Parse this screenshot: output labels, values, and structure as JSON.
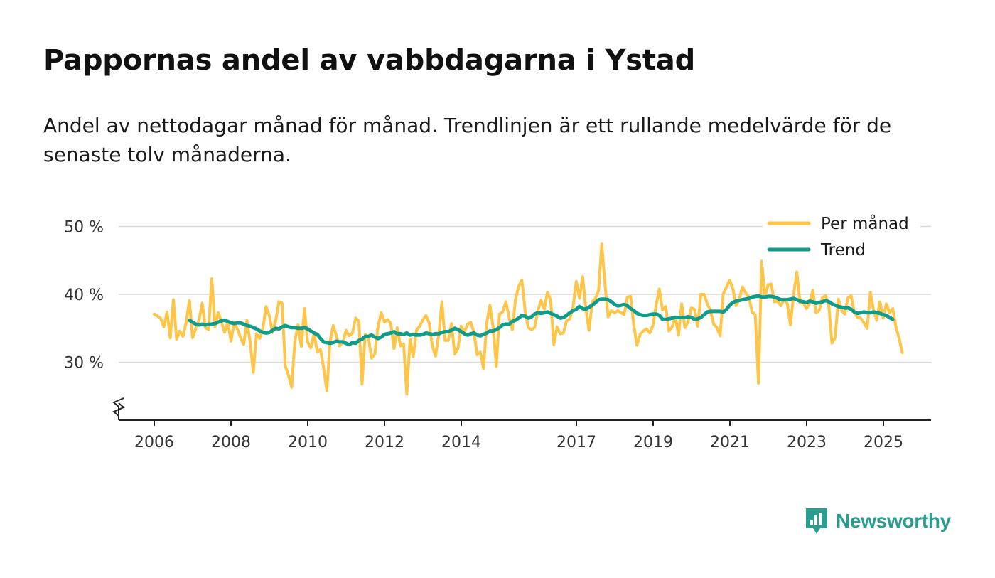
{
  "title": "Pappornas andel av vabbdagarna i Ystad",
  "subtitle": "Andel av nettodagar månad för månad. Trendlinjen är ett rullande medelvärde för de senaste tolv månaderna.",
  "brand": {
    "name": "Newsworthy",
    "color": "#2a9d8f",
    "icon": "newsworthy-logo-icon"
  },
  "chart_data": {
    "type": "line",
    "title": "Pappornas andel av vabbdagarna i Ystad",
    "xlabel": "",
    "ylabel": "",
    "ylim": [
      22,
      50
    ],
    "y_ticks": [
      30,
      40,
      50
    ],
    "y_tick_labels": [
      "30 %",
      "40 %",
      "50 %"
    ],
    "x_range": [
      2005.7,
      2025.9
    ],
    "x_ticks": [
      2006,
      2008,
      2010,
      2012,
      2014,
      2017,
      2019,
      2021,
      2023,
      2025
    ],
    "x_tick_labels": [
      "2006",
      "2008",
      "2010",
      "2012",
      "2014",
      "2017",
      "2019",
      "2021",
      "2023",
      "2025"
    ],
    "axis_break": true,
    "grid": true,
    "legend_position": "top-right",
    "series": [
      {
        "name": "Per månad",
        "color": "#ffc549",
        "x_start": 2006.0,
        "step": 0.0833,
        "values": [
          37.1,
          36.8,
          36.5,
          35.2,
          37.4,
          33.6,
          39.2,
          33.4,
          34.6,
          33.8,
          35.9,
          39.1,
          33.6,
          35.0,
          36.2,
          38.7,
          35.1,
          34.8,
          42.3,
          35.2,
          37.3,
          36.0,
          34.4,
          35.9,
          33.1,
          35.8,
          34.9,
          33.6,
          32.6,
          36.2,
          33.0,
          28.5,
          34.2,
          33.5,
          35.0,
          38.2,
          36.9,
          34.4,
          36.1,
          38.9,
          38.7,
          29.4,
          28.1,
          26.3,
          33.1,
          35.5,
          32.3,
          37.9,
          33.0,
          32.1,
          34.2,
          31.5,
          31.9,
          29.1,
          25.8,
          33.1,
          35.4,
          33.8,
          32.4,
          32.9,
          34.7,
          33.9,
          34.3,
          36.5,
          36.1,
          26.8,
          34.1,
          33.6,
          30.6,
          31.2,
          35.3,
          37.3,
          35.9,
          36.3,
          35.7,
          32.0,
          35.1,
          32.4,
          32.7,
          25.3,
          33.4,
          30.8,
          34.7,
          35.3,
          36.2,
          36.9,
          35.8,
          32.4,
          30.9,
          34.0,
          38.9,
          33.2,
          33.2,
          35.7,
          31.2,
          32.0,
          35.3,
          34.4,
          35.6,
          35.9,
          34.4,
          31.1,
          31.5,
          29.1,
          35.7,
          38.4,
          35.1,
          29.4,
          37.1,
          37.4,
          38.9,
          36.6,
          34.8,
          39.2,
          41.2,
          42.1,
          37.6,
          35.1,
          34.8,
          35.1,
          37.6,
          39.1,
          37.8,
          40.3,
          39.1,
          32.6,
          35.2,
          34.2,
          34.3,
          36.1,
          36.4,
          38.1,
          41.9,
          39.4,
          42.6,
          37.9,
          34.7,
          38.9,
          39.4,
          40.5,
          47.4,
          41.5,
          36.7,
          37.6,
          37.3,
          37.6,
          37.3,
          37.0,
          39.6,
          39.7,
          35.5,
          32.5,
          34.1,
          34.6,
          34.9,
          34.3,
          35.4,
          38.4,
          40.8,
          37.7,
          38.2,
          34.6,
          35.2,
          36.7,
          34.0,
          38.6,
          35.1,
          35.9,
          38.0,
          37.8,
          35.3,
          40.0,
          40.0,
          38.6,
          37.6,
          35.6,
          35.1,
          33.9,
          40.1,
          41.1,
          42.1,
          40.8,
          38.3,
          39.3,
          41.1,
          40.2,
          39.6,
          37.4,
          37.0,
          26.9,
          44.9,
          39.6,
          41.4,
          41.5,
          38.9,
          39.0,
          38.3,
          39.2,
          38.7,
          35.5,
          39.9,
          43.3,
          38.7,
          38.8,
          37.9,
          38.6,
          40.6,
          37.3,
          37.6,
          39.5,
          39.8,
          38.4,
          32.8,
          33.6,
          39.3,
          37.7,
          37.1,
          39.5,
          39.8,
          37.3,
          36.6,
          36.5,
          35.8,
          35.0,
          40.3,
          37.7,
          36.2,
          38.9,
          36.5,
          38.6,
          37.3,
          37.9,
          35.2,
          33.5,
          31.4
        ]
      },
      {
        "name": "Trend",
        "color": "#109b8a",
        "x_start": 2006.917,
        "step": 0.0833,
        "values": [
          36.2,
          35.9,
          35.6,
          35.5,
          35.6,
          35.5,
          35.6,
          35.6,
          35.7,
          35.9,
          36.1,
          36.2,
          36.0,
          35.8,
          35.7,
          35.8,
          35.8,
          35.6,
          35.4,
          35.3,
          35.1,
          34.9,
          34.6,
          34.4,
          34.3,
          34.4,
          34.7,
          35.0,
          34.9,
          35.2,
          35.4,
          35.2,
          35.1,
          35.1,
          35.0,
          35.0,
          35.1,
          34.9,
          34.6,
          34.3,
          34.1,
          33.5,
          33.0,
          32.9,
          32.8,
          32.9,
          33.1,
          33.0,
          33.0,
          32.8,
          32.6,
          32.9,
          32.8,
          33.2,
          33.4,
          33.8,
          33.8,
          34.0,
          33.7,
          33.5,
          33.7,
          34.1,
          34.2,
          34.3,
          34.5,
          34.2,
          34.2,
          34.1,
          34.3,
          34.0,
          34.1,
          34.0,
          34.0,
          34.1,
          34.3,
          34.2,
          34.1,
          34.2,
          34.2,
          34.4,
          34.5,
          34.5,
          34.7,
          35.0,
          34.8,
          34.5,
          34.2,
          34.0,
          34.2,
          34.3,
          34.0,
          33.9,
          34.1,
          34.3,
          34.6,
          34.6,
          34.8,
          35.1,
          35.5,
          35.6,
          35.6,
          36.0,
          36.2,
          36.5,
          36.9,
          36.8,
          36.5,
          36.7,
          37.1,
          37.3,
          37.2,
          37.3,
          37.4,
          37.2,
          37.0,
          36.8,
          36.5,
          36.6,
          36.9,
          37.3,
          37.6,
          37.8,
          38.2,
          37.9,
          37.8,
          38.1,
          38.4,
          38.8,
          39.2,
          39.3,
          39.3,
          39.2,
          38.9,
          38.5,
          38.3,
          38.4,
          38.5,
          38.3,
          37.9,
          37.6,
          37.2,
          37.0,
          36.9,
          36.9,
          37.0,
          37.1,
          37.1,
          36.9,
          36.3,
          36.3,
          36.4,
          36.5,
          36.6,
          36.6,
          36.6,
          36.6,
          36.7,
          36.6,
          36.3,
          36.4,
          36.6,
          37.0,
          37.4,
          37.5,
          37.5,
          37.5,
          37.5,
          37.4,
          37.8,
          38.4,
          38.8,
          39.0,
          39.1,
          39.2,
          39.3,
          39.4,
          39.6,
          39.7,
          39.8,
          39.6,
          39.6,
          39.7,
          39.7,
          39.6,
          39.4,
          39.2,
          39.2,
          39.2,
          39.3,
          39.4,
          39.2,
          39.0,
          38.9,
          38.8,
          39.0,
          38.9,
          38.7,
          38.8,
          38.9,
          39.1,
          38.9,
          38.6,
          38.4,
          38.2,
          38.1,
          38.0,
          38.0,
          37.8,
          37.4,
          37.2,
          37.3,
          37.4,
          37.3,
          37.3,
          37.4,
          37.3,
          37.2,
          37.0,
          36.9,
          36.6,
          36.3
        ]
      }
    ]
  }
}
